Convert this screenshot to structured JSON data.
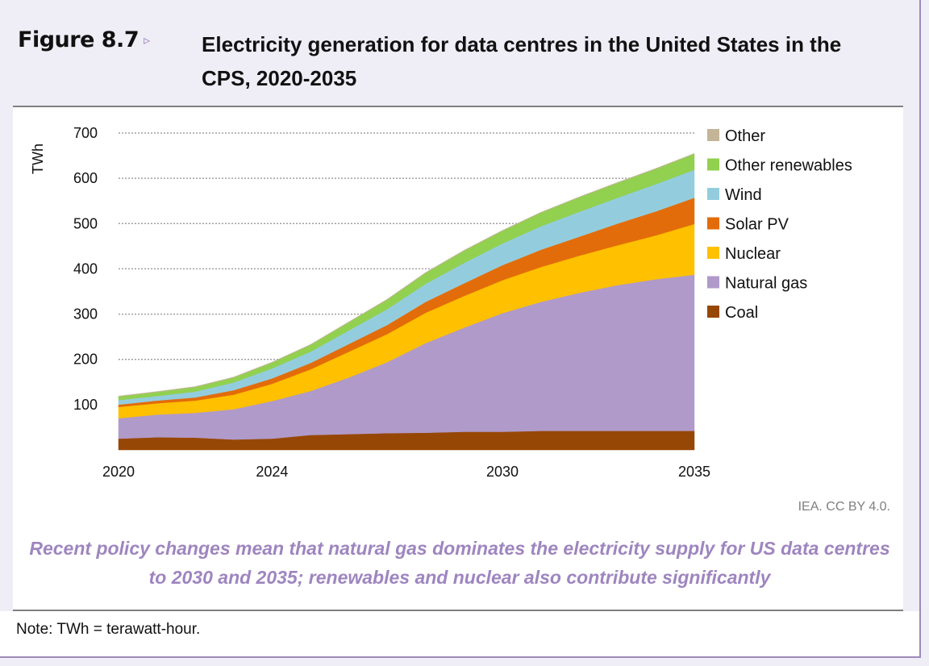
{
  "figure": {
    "label": "Figure 8.7",
    "arrow": "▹",
    "title": "Electricity generation for data centres in the United States in the CPS, 2020-2035"
  },
  "caption": "Recent policy changes mean that natural gas dominates the electricity supply for US data centres to 2030 and 2035; renewables and nuclear also contribute significantly",
  "credit": "IEA. CC BY 4.0.",
  "note": "Note: TWh = terawatt-hour.",
  "chart_data": {
    "type": "area",
    "stacked": true,
    "title": "Electricity generation for data centres in the United States in the CPS, 2020-2035",
    "ylabel": "TWh",
    "xlabel": "",
    "ylim": [
      0,
      700
    ],
    "yticks": [
      100,
      200,
      300,
      400,
      500,
      600,
      700
    ],
    "xticks": [
      2020,
      2024,
      2030,
      2035
    ],
    "grid": "horizontal dotted",
    "legend_position": "right",
    "x": [
      2020,
      2021,
      2022,
      2023,
      2024,
      2025,
      2026,
      2027,
      2028,
      2029,
      2030,
      2031,
      2032,
      2033,
      2034,
      2035
    ],
    "series": [
      {
        "name": "Coal",
        "color": "#974705",
        "values": [
          25,
          28,
          27,
          23,
          25,
          33,
          35,
          37,
          38,
          40,
          40,
          42,
          42,
          42,
          42,
          42
        ]
      },
      {
        "name": "Natural gas",
        "color": "#b09ac9",
        "values": [
          45,
          50,
          55,
          67,
          83,
          97,
          125,
          157,
          198,
          230,
          262,
          285,
          305,
          322,
          335,
          345
        ]
      },
      {
        "name": "Nuclear",
        "color": "#ffc000",
        "values": [
          25,
          25,
          27,
          32,
          38,
          48,
          57,
          62,
          67,
          70,
          73,
          77,
          82,
          88,
          97,
          112
        ]
      },
      {
        "name": "Solar PV",
        "color": "#e36c0a",
        "values": [
          5,
          6,
          7,
          10,
          12,
          14,
          17,
          20,
          24,
          28,
          33,
          38,
          42,
          48,
          53,
          58
        ]
      },
      {
        "name": "Wind",
        "color": "#93cddd",
        "values": [
          10,
          10,
          13,
          17,
          22,
          25,
          30,
          35,
          40,
          45,
          48,
          52,
          55,
          57,
          60,
          62
        ]
      },
      {
        "name": "Other renewables",
        "color": "#92d050",
        "values": [
          8,
          9,
          10,
          11,
          13,
          15,
          18,
          21,
          24,
          27,
          28,
          30,
          32,
          33,
          34,
          35
        ]
      },
      {
        "name": "Other",
        "color": "#c4b598",
        "values": [
          1,
          1,
          1,
          1,
          1,
          1,
          1,
          1,
          1,
          1,
          1,
          1,
          1,
          1,
          1,
          1
        ]
      }
    ],
    "legend_order": [
      "Other",
      "Other renewables",
      "Wind",
      "Solar PV",
      "Nuclear",
      "Natural gas",
      "Coal"
    ]
  }
}
